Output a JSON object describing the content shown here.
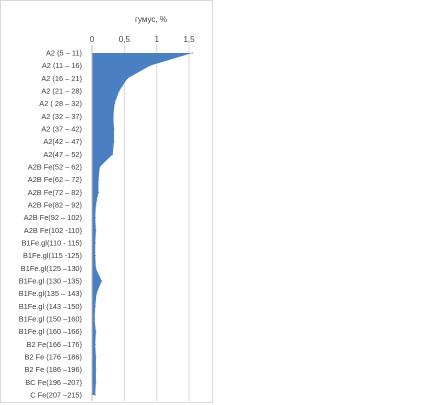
{
  "chart_data": {
    "type": "area",
    "orientation": "horizontal",
    "title": "гумус, %",
    "x_axis_position": "top",
    "xlim": [
      0,
      1.5
    ],
    "xticks": [
      "0",
      "0,5",
      "1",
      "1,5"
    ],
    "grid": true,
    "legend": "none",
    "fill_color": "#4a7fc1",
    "categories": [
      "A2 (5 – 11)",
      "A2 (11 – 16)",
      "A2 (16 – 21)",
      "A2 (21 – 28)",
      "A2 ( 28 – 32)",
      "A2 (32 – 37)",
      "A2 (37 – 42)",
      "A2(42 – 47)",
      "A2(47 – 52)",
      "A2B Fe(52 – 62)",
      "A2B Fe(62 – 72)",
      "A2B Fe(72 – 82)",
      "A2B Fe(82 – 92)",
      "A2B Fe(92 – 102)",
      "A2B Fe(102 -110)",
      "B1Fe.gl(110 - 115)",
      "B1Fe.gl(115 -125)",
      "B1Fe.gl(125 –130)",
      "B1Fe.gl (130 –135)",
      "B1Fe.gl(135 – 143)",
      "B1Fe.gl (143 –150)",
      "B1Fe.gl (150 –160)",
      "B1Fe.gl (160 –166)",
      "B2 Fe(166 –176)",
      "B2 Fe (176 –186)",
      "B2 Fe (186 –196)",
      "BC Fe(196 –207)",
      "C Fe(207 –215)"
    ],
    "values": [
      1.55,
      0.9,
      0.55,
      0.42,
      0.35,
      0.33,
      0.34,
      0.34,
      0.32,
      0.12,
      0.1,
      0.1,
      0.06,
      0.05,
      0.06,
      0.05,
      0.05,
      0.06,
      0.15,
      0.07,
      0.05,
      0.04,
      0.06,
      0.05,
      0.06,
      0.06,
      0.06,
      0.05
    ]
  }
}
